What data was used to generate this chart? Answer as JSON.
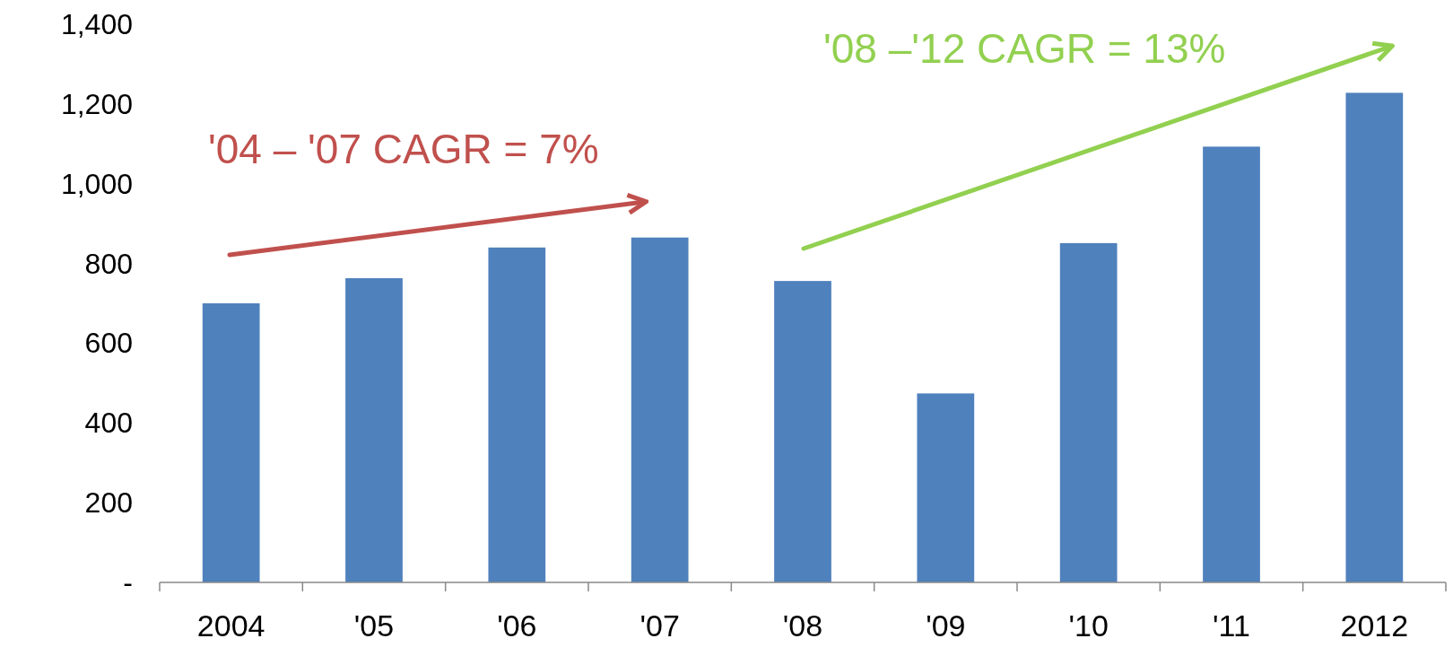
{
  "chart_data": {
    "type": "bar",
    "categories": [
      "2004",
      "'05",
      "'06",
      "'07",
      "'08",
      "'09",
      "'10",
      "'11",
      "2012"
    ],
    "values": [
      700,
      763,
      840,
      865,
      756,
      474,
      851,
      1093,
      1228
    ],
    "color": "#4f81bd",
    "ylim": [
      0,
      1400
    ],
    "yticks": [
      {
        "value": 0,
        "label": "-"
      },
      200,
      400,
      600,
      800,
      {
        "value": 1000,
        "label": "1,000"
      },
      {
        "value": 1200,
        "label": "1,200"
      },
      {
        "value": 1400,
        "label": "1,400"
      }
    ],
    "grid": false,
    "annotations": [
      "'04 – '07 CAGR = 7%",
      "'08 –'12 CAGR = 13%"
    ]
  }
}
